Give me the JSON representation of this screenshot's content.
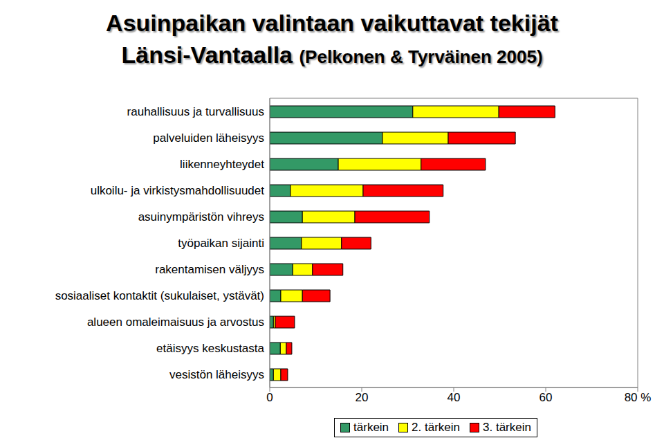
{
  "chart_data": {
    "type": "bar",
    "orientation": "horizontal",
    "stacked": true,
    "title": "Asuinpaikan valintaan vaikuttavat tekijät Länsi-Vantaalla",
    "subtitle": "(Pelkonen & Tyrväinen 2005)",
    "categories": [
      "rauhallisuus ja turvallisuus",
      "palveluiden läheisyys",
      "liikenneyhteydet",
      "ulkoilu- ja virkistysmahdollisuudet",
      "asuinympäristön vihreys",
      "työpaikan sijainti",
      "rakentamisen väljyys",
      "sosiaaliset kontaktit (sukulaiset, ystävät)",
      "alueen omaleimaisuus ja arvostus",
      "etäisyys keskustasta",
      "vesistön läheisyys"
    ],
    "series": [
      {
        "name": "tärkein",
        "color": "#339966",
        "values": [
          31.1,
          24.5,
          14.9,
          4.5,
          7.1,
          6.9,
          5.0,
          2.4,
          0.8,
          2.3,
          0.8
        ]
      },
      {
        "name": "2. tärkein",
        "color": "#ffff00",
        "values": [
          18.7,
          14.3,
          18.0,
          15.8,
          11.4,
          8.7,
          4.3,
          4.7,
          0.4,
          1.3,
          1.6
        ]
      },
      {
        "name": "3. tärkein",
        "color": "#ff0000",
        "values": [
          12.2,
          14.6,
          14.0,
          17.4,
          16.2,
          6.4,
          6.6,
          6.0,
          4.2,
          1.2,
          1.5
        ]
      }
    ],
    "xlim": [
      0,
      80
    ],
    "xticks": [
      0,
      20,
      40,
      60,
      {
        "value": 80,
        "label": "80 %"
      }
    ],
    "legend": "bottom"
  }
}
